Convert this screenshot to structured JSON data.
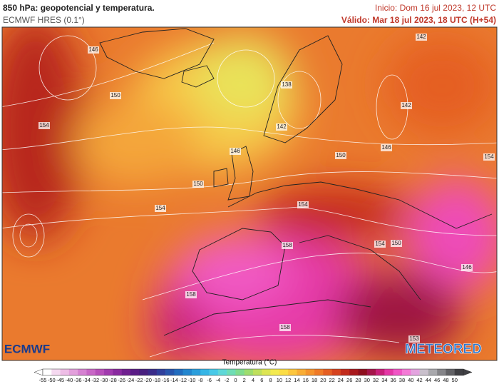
{
  "header": {
    "title": "850 hPa: geopotencial y temperatura.",
    "model": "ECMWF HRES (0.1°)",
    "init": "Inicio: Dom 16 jul 2023, 12 UTC",
    "valid": "Válido: Mar 18 jul 2023, 18 UTC (H+54)"
  },
  "map": {
    "contour_labels": [
      146,
      150,
      154,
      142,
      142,
      138,
      142,
      146,
      150,
      146,
      154,
      150,
      154,
      154,
      158,
      154,
      150,
      146,
      158,
      158,
      153
    ]
  },
  "logos": {
    "left": "ECMWF",
    "right": "METEORED"
  },
  "legend": {
    "title": "Temperatura (°C)",
    "ticks": [
      -55,
      -50,
      -45,
      -40,
      -36,
      -34,
      -32,
      -30,
      -28,
      -26,
      -24,
      -22,
      -20,
      -18,
      -16,
      -14,
      -12,
      -10,
      -8,
      -6,
      -4,
      -2,
      0,
      2,
      4,
      6,
      8,
      10,
      12,
      14,
      16,
      18,
      20,
      22,
      24,
      26,
      28,
      30,
      32,
      34,
      36,
      38,
      40,
      42,
      44,
      46,
      48,
      50
    ],
    "colors": [
      "#ffffff",
      "#f5d9f0",
      "#eebde6",
      "#e3a0dc",
      "#d682d2",
      "#c867c6",
      "#b74fba",
      "#a13aae",
      "#8a2aa0",
      "#702090",
      "#5a1c86",
      "#48207f",
      "#3a2c8a",
      "#30409c",
      "#2856ad",
      "#226dbf",
      "#2386cf",
      "#2a9edc",
      "#35b5e6",
      "#48c9e8",
      "#5fd8d8",
      "#6fddb5",
      "#7fdc8e",
      "#9ddd6e",
      "#bfe05c",
      "#dde553",
      "#f3ea50",
      "#fbdd45",
      "#fcc63d",
      "#f9ad35",
      "#f5942d",
      "#ef7a27",
      "#e55e22",
      "#d6431e",
      "#c22b1c",
      "#a8191c",
      "#8e0f1e",
      "#a5154a",
      "#c8207a",
      "#e437a6",
      "#f055c5",
      "#f47ad6",
      "#e4a4e0",
      "#c9c0cc",
      "#a8a8ac",
      "#858589",
      "#626266",
      "#404044"
    ]
  }
}
